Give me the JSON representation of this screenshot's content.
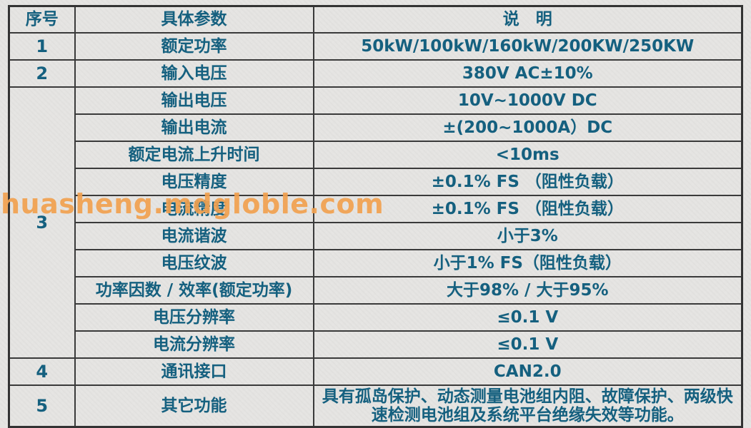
{
  "colors": {
    "text_teal": "#15607F",
    "border": "#3a3a3a",
    "background": "#e5e4e2",
    "watermark_orange": "#F2A14F"
  },
  "watermark": {
    "text": "huasheng.mdgloble.com"
  },
  "table": {
    "headers": [
      "序号",
      "具体参数",
      "说　明"
    ],
    "rows": [
      {
        "no": "1",
        "param": "额定功率",
        "desc": "50kW/100kW/160kW/200KW/250KW"
      },
      {
        "no": "2",
        "param": "输入电压",
        "desc": "380V AC±10%"
      },
      {
        "no": "3",
        "subrows": [
          {
            "param": "输出电压",
            "desc": "10V~1000V DC"
          },
          {
            "param": "输出电流",
            "desc": "±(200~1000A）DC"
          },
          {
            "param": "额定电流上升时间",
            "desc": "<10ms"
          },
          {
            "param": "电压精度",
            "desc": "±0.1% FS （阻性负载）"
          },
          {
            "param": "电流精度",
            "desc": "±0.1% FS （阻性负载）"
          },
          {
            "param": "电流谐波",
            "desc": "小于3%"
          },
          {
            "param": "电压纹波",
            "desc": "小于1% FS（阻性负载）"
          },
          {
            "param": "功率因数 / 效率(额定功率)",
            "desc": "大于98% / 大于95%"
          },
          {
            "param": "电压分辨率",
            "desc": "≤0.1 V"
          },
          {
            "param": "电流分辨率",
            "desc": "≤0.1 V"
          }
        ]
      },
      {
        "no": "4",
        "param": "通讯接口",
        "desc": "CAN2.0"
      },
      {
        "no": "5",
        "param": "其它功能",
        "desc": "具有孤岛保护、动态测量电池组内阻、故障保护、两级快速检测电池组及系统平台绝缘失效等功能。"
      }
    ]
  }
}
